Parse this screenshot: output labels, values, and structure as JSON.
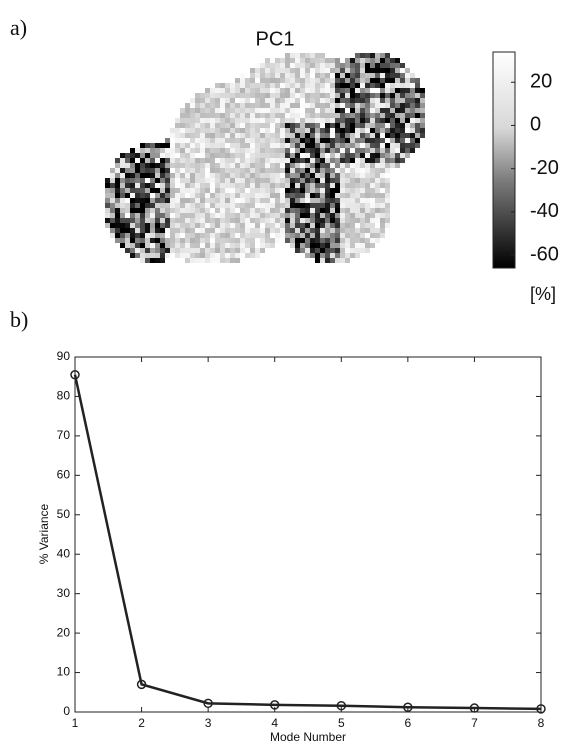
{
  "chart_data": [
    {
      "type": "heatmap",
      "label": "a)",
      "title": "PC1",
      "clim": [
        -66,
        34
      ],
      "cticks": [
        20,
        0,
        -20,
        -40,
        -60
      ],
      "cbar_label": "[%]"
    },
    {
      "type": "line",
      "label": "b)",
      "x": [
        1,
        2,
        3,
        4,
        5,
        6,
        7,
        8
      ],
      "series": [
        {
          "name": "% Variance",
          "color": "#222222",
          "values": [
            85.5,
            7,
            2.2,
            1.8,
            1.6,
            1.2,
            1.0,
            0.8
          ]
        }
      ],
      "xlim": [
        1,
        8
      ],
      "ylim": [
        0,
        90
      ],
      "xticks": [
        1,
        2,
        3,
        4,
        5,
        6,
        7,
        8
      ],
      "yticks": [
        0,
        10,
        20,
        30,
        40,
        50,
        60,
        70,
        80,
        90
      ],
      "xlabel": "Mode Number",
      "ylabel": "% Variance",
      "marker": "circle"
    }
  ]
}
